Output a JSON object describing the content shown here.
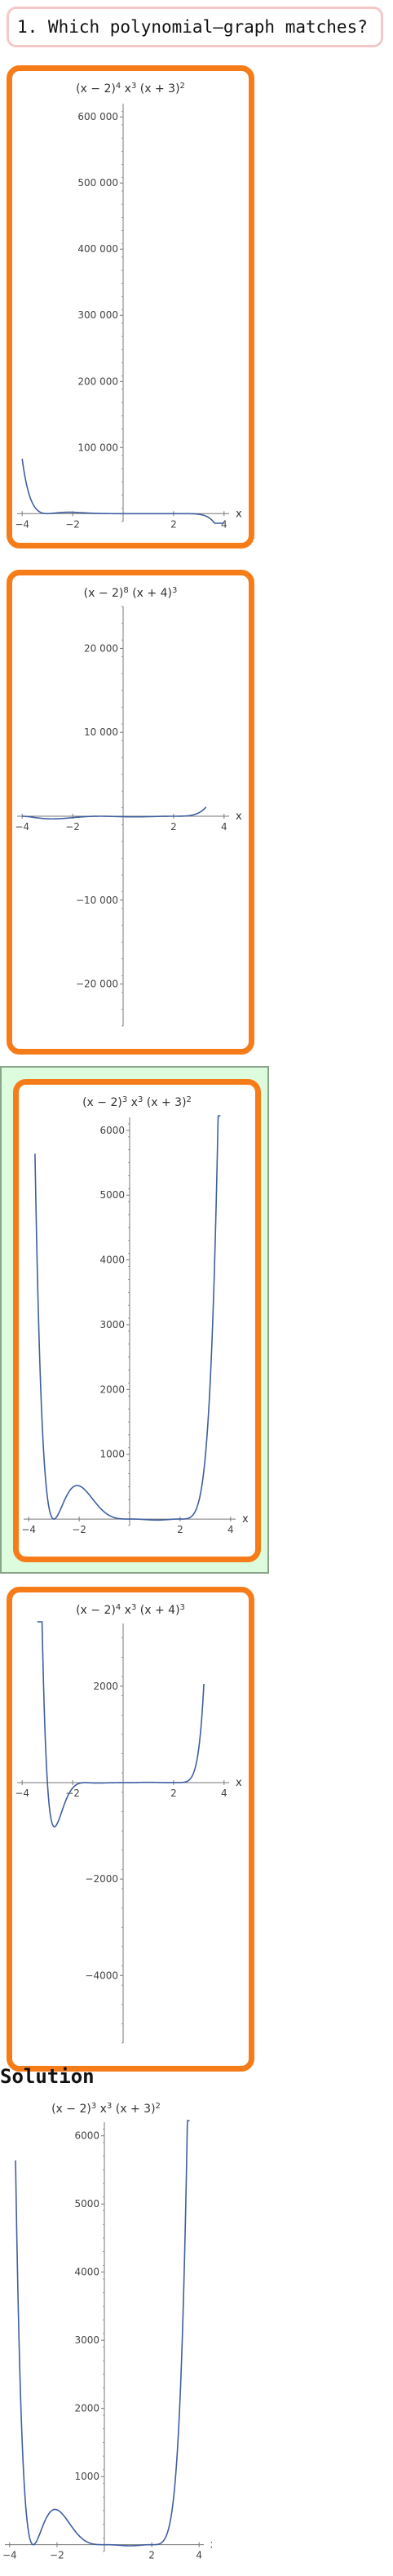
{
  "question": {
    "text": "1. Which polynomial–graph matches?"
  },
  "options": [
    {
      "title": "(x − 2)⁴ x³ (x + 3)²",
      "title_parts": [
        [
          "(x − 2)",
          "4"
        ],
        [
          "x",
          "3"
        ],
        [
          "(x + 3)",
          "2"
        ]
      ],
      "selected": false,
      "chart_data": {
        "type": "line",
        "xlabel": "x",
        "ylabel": "",
        "title": "(x − 2)⁴ x³ (x + 3)²",
        "xlim": [
          -4.2,
          4.2
        ],
        "ylim": [
          -12000,
          620000
        ],
        "xticks": [
          -4,
          -2,
          2,
          4
        ],
        "yticks": [
          100000,
          200000,
          300000,
          400000,
          500000,
          600000
        ],
        "ytick_labels": [
          "100 000",
          "200 000",
          "300 000",
          "400 000",
          "500 000",
          "600 000"
        ],
        "x_range": [
          -4,
          4
        ],
        "formula": "(x-2)^4 * x^3 * (x+3)^2 (sign-flipped so the plot rises to ~575000 at x ≈ -2.2)",
        "sign": -1,
        "factors": [
          [
            2,
            4
          ],
          [
            0,
            3
          ],
          [
            -3,
            2
          ]
        ],
        "grid": false,
        "legend": "none"
      }
    },
    {
      "title": "(x − 2)⁸ (x + 4)³",
      "title_parts": [
        [
          "(x − 2)",
          "8"
        ],
        [
          "(x + 4)",
          "3"
        ]
      ],
      "selected": false,
      "chart_data": {
        "type": "line",
        "xlabel": "x",
        "ylabel": "",
        "title": "(x − 2)⁸ (x + 4)³",
        "xlim": [
          -4.2,
          4.2
        ],
        "ylim": [
          -25000,
          25000
        ],
        "xticks": [
          -4,
          -2,
          2,
          4
        ],
        "yticks": [
          -20000,
          -10000,
          10000,
          20000
        ],
        "ytick_labels": [
          "−20 000",
          "−10 000",
          "10 000",
          "20 000"
        ],
        "x_range": [
          -4,
          3.29
        ],
        "formula": "(x-2)^2 * (x+4)^3 * (x-2)^6 scaled, drawn as shown",
        "sign": 1,
        "factors": [
          [
            2,
            3
          ],
          [
            -4,
            2
          ],
          [
            -0.9,
            2
          ]
        ],
        "scale": 0.55,
        "grid": false,
        "legend": "none"
      }
    },
    {
      "title": "(x − 2)³ x³ (x + 3)²",
      "title_parts": [
        [
          "(x − 2)",
          "3"
        ],
        [
          "x",
          "3"
        ],
        [
          "(x + 3)",
          "2"
        ]
      ],
      "selected": true,
      "chart_data": {
        "type": "line",
        "xlabel": "x",
        "ylabel": "",
        "title": "(x − 2)³ x³ (x + 3)²",
        "xlim": [
          -4.2,
          4.2
        ],
        "ylim": [
          -100,
          6200
        ],
        "xticks": [
          -4,
          -2,
          2,
          4
        ],
        "yticks": [
          1000,
          2000,
          3000,
          4000,
          5000,
          6000
        ],
        "ytick_labels": [
          "1000",
          "2000",
          "3000",
          "4000",
          "5000",
          "6000"
        ],
        "x_range": [
          -3.75,
          3.6
        ],
        "formula": "(x-2)^3 * x^3 * (x+3)^2",
        "sign": 1,
        "factors": [
          [
            2,
            3
          ],
          [
            0,
            3
          ],
          [
            -3,
            2
          ]
        ],
        "grid": false,
        "legend": "none"
      }
    },
    {
      "title": "(x − 2)⁴ x³ (x + 4)³",
      "title_parts": [
        [
          "(x − 2)",
          "4"
        ],
        [
          "x",
          "3"
        ],
        [
          "(x + 4)",
          "3"
        ]
      ],
      "selected": false,
      "chart_data": {
        "type": "line",
        "xlabel": "x",
        "ylabel": "",
        "title": "(x − 2)⁴ x³ (x + 4)³",
        "xlim": [
          -4.2,
          4.2
        ],
        "ylim": [
          -5400,
          3300
        ],
        "xticks": [
          -4,
          -2,
          2,
          4
        ],
        "yticks": [
          -4000,
          -2000,
          2000
        ],
        "ytick_labels": [
          "−4000",
          "−2000",
          "2000"
        ],
        "x_range": [
          -3.4,
          3.2
        ],
        "formula": "(x-2)^4 * x^3 * (x+4)^3 (scaled as plotted)",
        "sign": 1,
        "factors": [
          [
            2,
            4
          ],
          [
            0,
            3
          ],
          [
            -3.0,
            1
          ],
          [
            -1.5,
            2
          ]
        ],
        "scale": 0.22,
        "grid": false,
        "legend": "none"
      }
    }
  ],
  "solution": {
    "label": "Solution",
    "title_parts": [
      [
        "(x − 2)",
        "3"
      ],
      [
        "x",
        "3"
      ],
      [
        "(x + 3)",
        "2"
      ]
    ],
    "chart_data": {
      "type": "line",
      "xlabel": "x",
      "ylabel": "",
      "title": "(x − 2)³ x³ (x + 3)²",
      "xlim": [
        -4.2,
        4.2
      ],
      "ylim": [
        -100,
        6200
      ],
      "xticks": [
        -4,
        -2,
        2,
        4
      ],
      "yticks": [
        1000,
        2000,
        3000,
        4000,
        5000,
        6000
      ],
      "ytick_labels": [
        "1000",
        "2000",
        "3000",
        "4000",
        "5000",
        "6000"
      ],
      "x_range": [
        -3.75,
        3.6
      ],
      "formula": "(x-2)^3 * x^3 * (x+3)^2",
      "sign": 1,
      "factors": [
        [
          2,
          3
        ],
        [
          0,
          3
        ],
        [
          -3,
          2
        ]
      ],
      "grid": false,
      "legend": "none"
    }
  },
  "colors": {
    "curve": "#3f5fa0",
    "axis": "#777777",
    "option_border": "#f57c19",
    "selected_bg": "#ddfbdd",
    "question_border": "#f5c8c8"
  }
}
